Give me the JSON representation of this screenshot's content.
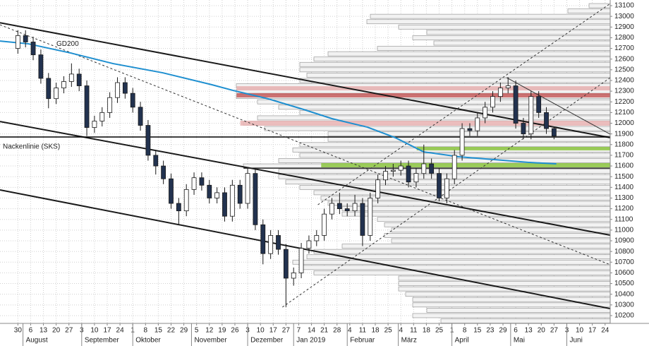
{
  "chart_data": {
    "type": "candlestick",
    "x": [
      0,
      3,
      6,
      9,
      12,
      15,
      18,
      21,
      24,
      27,
      30,
      33,
      36,
      39,
      42,
      45,
      48,
      51,
      54,
      57,
      60,
      63,
      66,
      69,
      72,
      75,
      78,
      81,
      84,
      87,
      90,
      93,
      96,
      99,
      102,
      105,
      108,
      111,
      114,
      117,
      120,
      123,
      126,
      129,
      132,
      135,
      138,
      141,
      144,
      147,
      150,
      153,
      156,
      159,
      162,
      165,
      168,
      171,
      174,
      177,
      180,
      183,
      186,
      189,
      192,
      195,
      198,
      201,
      204,
      207,
      210
    ],
    "open": [
      12700,
      12820,
      12760,
      12640,
      12420,
      12230,
      12330,
      12390,
      12460,
      12350,
      11960,
      12020,
      12100,
      12240,
      12380,
      12280,
      12150,
      11980,
      11700,
      11600,
      11480,
      11250,
      11180,
      11380,
      11490,
      11420,
      11300,
      11350,
      11130,
      11420,
      11250,
      11530,
      11050,
      10780,
      10950,
      10820,
      10550,
      10600,
      10830,
      10900,
      10950,
      11150,
      11250,
      11200,
      11180,
      11250,
      10950,
      11300,
      11470,
      11550,
      11560,
      11600,
      11450,
      11530,
      11620,
      11530,
      11300,
      11480,
      11700,
      11950,
      11930,
      12050,
      12150,
      12250,
      12330,
      12350,
      12000,
      11900,
      12250,
      12100,
      11950
    ],
    "high": [
      12870,
      12870,
      12810,
      12690,
      12470,
      12380,
      12440,
      12560,
      12510,
      12400,
      12070,
      12150,
      12290,
      12430,
      12430,
      12330,
      12200,
      12030,
      11750,
      11650,
      11530,
      11300,
      11430,
      11540,
      11540,
      11470,
      11400,
      11400,
      11470,
      11470,
      11580,
      11580,
      11100,
      11000,
      11000,
      10870,
      10650,
      10880,
      10950,
      11000,
      11200,
      11300,
      11350,
      11250,
      11330,
      11300,
      11350,
      11520,
      11600,
      11620,
      11650,
      11650,
      11580,
      11800,
      11670,
      11580,
      11530,
      11750,
      12000,
      12000,
      12100,
      12200,
      12300,
      12380,
      12430,
      12400,
      12050,
      12300,
      12300,
      12150,
      11970
    ],
    "low": [
      12650,
      12710,
      12590,
      12370,
      12140,
      12180,
      12280,
      12340,
      12300,
      11880,
      11910,
      11970,
      12050,
      12190,
      12230,
      12100,
      11930,
      11650,
      11520,
      11430,
      11200,
      11050,
      11130,
      11330,
      11370,
      11250,
      11250,
      11080,
      11080,
      11200,
      11200,
      11000,
      10680,
      10730,
      10770,
      10280,
      10480,
      10550,
      10780,
      10850,
      10900,
      11100,
      11150,
      11130,
      11130,
      10850,
      10900,
      11250,
      11420,
      11500,
      11510,
      11400,
      11400,
      11480,
      11480,
      11270,
      11250,
      11430,
      11650,
      11880,
      11880,
      12000,
      12100,
      12200,
      12280,
      11950,
      11850,
      11850,
      12050,
      11900,
      11850
    ],
    "close": [
      12820,
      12760,
      12640,
      12420,
      12230,
      12330,
      12390,
      12460,
      12350,
      11960,
      12020,
      12100,
      12240,
      12380,
      12280,
      12150,
      11980,
      11700,
      11600,
      11480,
      11250,
      11180,
      11380,
      11490,
      11420,
      11300,
      11350,
      11130,
      11420,
      11250,
      11530,
      11050,
      10780,
      10950,
      10820,
      10550,
      10600,
      10830,
      10900,
      10950,
      11150,
      11250,
      11200,
      11180,
      11250,
      10950,
      11300,
      11470,
      11550,
      11560,
      11600,
      11450,
      11530,
      11620,
      11530,
      11300,
      11480,
      11700,
      11950,
      11930,
      12050,
      12150,
      12250,
      12330,
      12350,
      12000,
      11900,
      12250,
      12100,
      11950,
      11880
    ],
    "up_color": "#ffffff",
    "down_color": "#22324f",
    "xlim": [
      -7,
      232
    ],
    "ylim": [
      10127,
      13153
    ],
    "yticks": [
      10200,
      10300,
      10400,
      10500,
      10600,
      10700,
      10800,
      10900,
      11000,
      11100,
      11200,
      11300,
      11400,
      11500,
      11600,
      11700,
      11800,
      11900,
      12000,
      12100,
      12200,
      12300,
      12400,
      12500,
      12600,
      12700,
      12800,
      12900,
      13000,
      13100
    ],
    "xticks": [
      {
        "value": 0,
        "label": "30"
      },
      {
        "value": 5,
        "label": "6"
      },
      {
        "value": 10,
        "label": "13"
      },
      {
        "value": 15,
        "label": "20"
      },
      {
        "value": 20,
        "label": "27"
      },
      {
        "value": 25,
        "label": "3"
      },
      {
        "value": 30,
        "label": "10"
      },
      {
        "value": 35,
        "label": "17"
      },
      {
        "value": 40,
        "label": "24"
      },
      {
        "value": 45,
        "label": "1"
      },
      {
        "value": 50,
        "label": "8"
      },
      {
        "value": 55,
        "label": "15"
      },
      {
        "value": 60,
        "label": "22"
      },
      {
        "value": 65,
        "label": "29"
      },
      {
        "value": 70,
        "label": "5"
      },
      {
        "value": 75,
        "label": "12"
      },
      {
        "value": 80,
        "label": "19"
      },
      {
        "value": 85,
        "label": "26"
      },
      {
        "value": 90,
        "label": "3"
      },
      {
        "value": 95,
        "label": "10"
      },
      {
        "value": 100,
        "label": "17"
      },
      {
        "value": 105,
        "label": "27"
      },
      {
        "value": 110,
        "label": "7"
      },
      {
        "value": 115,
        "label": "14"
      },
      {
        "value": 120,
        "label": "21"
      },
      {
        "value": 125,
        "label": "28"
      },
      {
        "value": 130,
        "label": "4"
      },
      {
        "value": 135,
        "label": "11"
      },
      {
        "value": 140,
        "label": "18"
      },
      {
        "value": 145,
        "label": "25"
      },
      {
        "value": 150,
        "label": "4"
      },
      {
        "value": 155,
        "label": "11"
      },
      {
        "value": 160,
        "label": "18"
      },
      {
        "value": 165,
        "label": "25"
      },
      {
        "value": 170,
        "label": "1"
      },
      {
        "value": 175,
        "label": "8"
      },
      {
        "value": 180,
        "label": "15"
      },
      {
        "value": 185,
        "label": "23"
      },
      {
        "value": 190,
        "label": "29"
      },
      {
        "value": 195,
        "label": "6"
      },
      {
        "value": 200,
        "label": "13"
      },
      {
        "value": 205,
        "label": "20"
      },
      {
        "value": 210,
        "label": "27"
      },
      {
        "value": 215,
        "label": "3"
      },
      {
        "value": 220,
        "label": "10"
      },
      {
        "value": 225,
        "label": "17"
      },
      {
        "value": 230,
        "label": "24"
      }
    ],
    "month_labels": [
      {
        "value": 2,
        "label": "August"
      },
      {
        "value": 25,
        "label": "September"
      },
      {
        "value": 45,
        "label": "Oktober"
      },
      {
        "value": 68,
        "label": "November"
      },
      {
        "value": 90,
        "label": "Dezember"
      },
      {
        "value": 108,
        "label": "Jan 2019"
      },
      {
        "value": 129,
        "label": "Februar"
      },
      {
        "value": 149,
        "label": "März"
      },
      {
        "value": 170,
        "label": "April"
      },
      {
        "value": 193,
        "label": "Mai"
      },
      {
        "value": 215,
        "label": "Juni"
      }
    ],
    "grid": true,
    "volume_profile": {
      "color": "#f2f2f2",
      "levels": [
        10150,
        10200,
        10250,
        10300,
        10350,
        10400,
        10450,
        10500,
        10550,
        10600,
        10650,
        10700,
        10750,
        10800,
        10850,
        10900,
        10950,
        11000,
        11050,
        11100,
        11150,
        11200,
        11250,
        11300,
        11350,
        11400,
        11450,
        11500,
        11550,
        11600,
        11650,
        11700,
        11750,
        11800,
        11850,
        11900,
        11950,
        12000,
        12050,
        12100,
        12150,
        12200,
        12250,
        12300,
        12350,
        12400,
        12450,
        12500,
        12550,
        12600,
        12650,
        12700,
        12750,
        12800,
        12850,
        12900,
        12950,
        13000,
        13050,
        13100
      ],
      "values": [
        240,
        280,
        260,
        280,
        280,
        290,
        300,
        300,
        300,
        420,
        440,
        450,
        430,
        420,
        380,
        310,
        320,
        310,
        320,
        330,
        380,
        380,
        400,
        410,
        420,
        440,
        460,
        470,
        470,
        520,
        470,
        440,
        450,
        440,
        400,
        400,
        490,
        520,
        500,
        440,
        470,
        500,
        530,
        530,
        530,
        440,
        430,
        440,
        440,
        420,
        400,
        330,
        250,
        280,
        260,
        300,
        345,
        340,
        60,
        30
      ]
    },
    "zones": [
      {
        "ylim": [
          12307,
          12347
        ],
        "x_start": 85.7,
        "color": "#eab4b4"
      },
      {
        "ylim": [
          12241,
          12281
        ],
        "x_start": 85.7,
        "color": "#c65c5c"
      },
      {
        "ylim": [
          11977,
          12023
        ],
        "x_start": 87.1,
        "color": "#eab4b4"
      },
      {
        "ylim": [
          11746,
          11779
        ],
        "x_start": 156.2,
        "color": "#8cc63f"
      },
      {
        "ylim": [
          11587,
          11627
        ],
        "x_start": 118.8,
        "color": "#8cc63f"
      }
    ],
    "lines": [
      {
        "x": [
          -7,
          232
        ],
        "y": [
          12940,
          11865
        ],
        "color": "#1a1a1a",
        "width": 2,
        "style": "solid"
      },
      {
        "x": [
          -7,
          232
        ],
        "y": [
          12016,
          10953
        ],
        "color": "#1a1a1a",
        "width": 2,
        "style": "solid"
      },
      {
        "x": [
          -7,
          232
        ],
        "y": [
          11376,
          10266
        ],
        "color": "#1a1a1a",
        "width": 2,
        "style": "solid"
      },
      {
        "x": [
          -7,
          232
        ],
        "y": [
          11871,
          11871
        ],
        "color": "#000000",
        "width": 1.5,
        "style": "solid",
        "label": "Nackenlinie (SKS)"
      },
      {
        "x": [
          88.4,
          232
        ],
        "y": [
          11580,
          11580
        ],
        "color": "#222222",
        "width": 1.5,
        "style": "solid"
      },
      {
        "x": [
          -7,
          232
        ],
        "y": [
          12921,
          10676
        ],
        "color": "#333333",
        "width": 1,
        "style": "dashed"
      },
      {
        "x": [
          103.6,
          232
        ],
        "y": [
          10279,
          12426
        ],
        "color": "#333333",
        "width": 1,
        "style": "dashed"
      },
      {
        "x": [
          117.5,
          232
        ],
        "y": [
          11237,
          13119
        ],
        "color": "#333333",
        "width": 1,
        "style": "dashed"
      },
      {
        "x": [
          191.5,
          232
        ],
        "y": [
          12426,
          11897
        ],
        "color": "#333333",
        "width": 1,
        "style": "solid"
      },
      {
        "x": [
          -7,
          4.1,
          20.7,
          37.3,
          56.7,
          76,
          84.3,
          98.1,
          111.9,
          123,
          136.8,
          147.9,
          158.9,
          172.7,
          186.6,
          200.4,
          210.9
        ],
        "y": [
          12769,
          12743,
          12657,
          12558,
          12472,
          12360,
          12307,
          12228,
          12129,
          12043,
          11964,
          11864,
          11732,
          11686,
          11660,
          11633,
          11620
        ],
        "color": "#1e8fd0",
        "width": 2,
        "style": "solid",
        "label": "GD200"
      }
    ]
  }
}
